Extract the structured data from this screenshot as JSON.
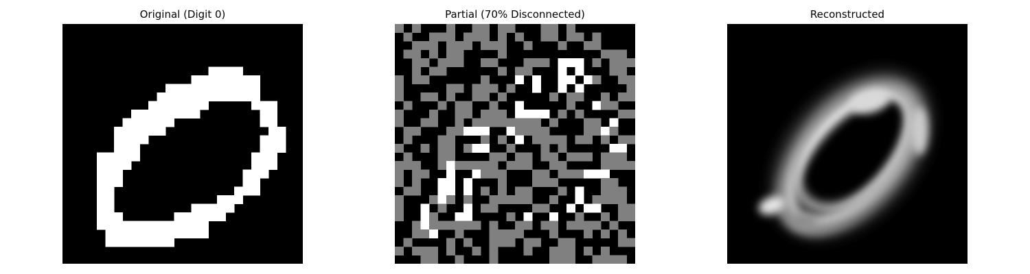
{
  "panels": [
    {
      "id": "original",
      "title": "Original (Digit 0)",
      "grid_size": 28,
      "cells": [
        "............................",
        "............................",
        "............................",
        "............................",
        "............................",
        ".................####.......",
        "...............########.....",
        "............###########.....",
        "...........############.....",
        "..........#######.....###...",
        "........########.......##...",
        ".......######..........##...",
        "......######............##..",
        "......####.............###..",
        "......###..............###..",
        "....#####.............###...",
        "....####..............###...",
        "....###..............###....",
        "....###..............##.....",
        "....##..............###.....",
        "....##............###.......",
        "....##.........#####........",
        "....###......######.........",
        "....#############...........",
        ".....############...........",
        ".....########...............",
        "............................",
        "............................"
      ]
    },
    {
      "id": "partial",
      "title": "Partial (70% Disconnected)",
      "grid_size": 28,
      "cells": [
        "g.g...g..gg.gg...gg.g.......",
        ".g..ggg.ggg.g.g..gg.gg.g....",
        "..ggg.ggg.ggg..g...g..gg....",
        ".gg.g.gg....g...........ggg.",
        "..gg.ggg..gg...ggg.###.g.ggg",
        "..g.gg......g.gg...#.#...gg.",
        "g.gg......g...#.#..##.#g..gg",
        "g.....gg.ggg.g..#..#.#.....g",
        "g..gg.g..gg.g.....g.gg..g.gg",
        ".g...g.gg..g..#.....g..#gg..",
        "g...g..gg.ggg.####.g.g....gg",
        "g..gg..g.gggggggg.g...gg.#..",
        ".gg...gg###..#gggg....gg#g..",
        ".g...gg...g.g.#.gggg.gg.g.gg",
        "g..g.gg.g##..g...g.g.....##.",
        ".g...gg....gg.gg.gg.ggg.ggg.",
        "ggg..g#ggggg.ggg..gg....gggg",
        "g.gg..#..#ggg...gg.ggg###...",
        "g.g..##.#...g...ggg.....gg..",
        ".gg..##.#.g.g.gg...g.#..ggg.",
        "g...g#g.g..ggggg..g..#.gggg.",
        "g..#.g..#.gg....gg..#.##..gg",
        "g..#g..##....g.#..#..g..g.gg",
        "..g#gggggg.g..gg.gg.gggg.g..",
        "..gg#..g...gggg...g...g.g.g.",
        ".g....g.g..ggg.gg..gg.....gg",
        "g.ggg.g..g.g...g..ggg.g.g...",
        "...gg..g...g......ggg..gggg."
      ]
    },
    {
      "id": "reconstructed",
      "title": "Reconstructed",
      "grid_size": 28,
      "blobs": [
        {
          "shape": "ellipse",
          "cx": 14.4,
          "cy": 15.6,
          "rx": 9.6,
          "ry": 5.0,
          "rotate": -48,
          "level": 0.95,
          "width": 2.2,
          "blur": 0.55
        },
        {
          "shape": "ellipse",
          "cx": 14.8,
          "cy": 14.4,
          "rx": 8.4,
          "ry": 5.2,
          "rotate": -48,
          "level": 0.75,
          "width": 1.1,
          "blur": 0.6
        },
        {
          "shape": "ellipse",
          "cx": 14.5,
          "cy": 15.2,
          "rx": 10.4,
          "ry": 6.3,
          "rotate": -48,
          "level": 0.35,
          "width": 1.4,
          "blur": 0.9
        },
        {
          "shape": "ellipse",
          "cx": 16.6,
          "cy": 9.0,
          "rx": 2.4,
          "ry": 1.4,
          "rotate": -15,
          "level": 0.85,
          "width": 0,
          "blur": 0.5
        },
        {
          "shape": "ellipse",
          "cx": 5.2,
          "cy": 21.2,
          "rx": 1.6,
          "ry": 1.0,
          "rotate": -20,
          "level": 0.9,
          "width": 0,
          "blur": 0.5
        },
        {
          "shape": "ellipse",
          "cx": 22.4,
          "cy": 12.5,
          "rx": 1.0,
          "ry": 2.8,
          "rotate": 0,
          "level": 0.8,
          "width": 0,
          "blur": 0.5
        },
        {
          "shape": "ellipse",
          "cx": 9.0,
          "cy": 23.0,
          "rx": 1.4,
          "ry": 0.8,
          "rotate": 0,
          "level": 0.55,
          "width": 0,
          "blur": 0.5
        }
      ]
    }
  ]
}
